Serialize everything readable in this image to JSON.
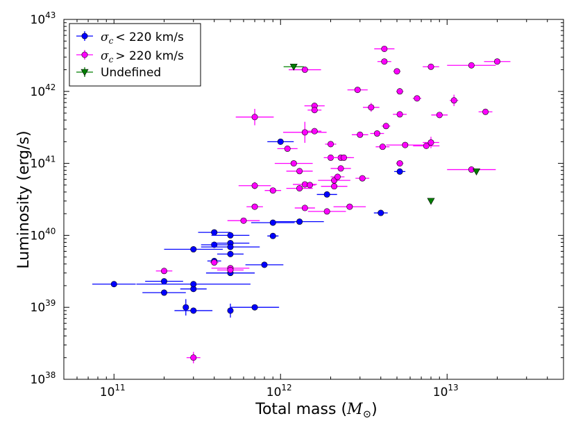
{
  "chart_data": {
    "type": "scatter",
    "xlabel": "Total mass (",
    "xlabel_unit": "M",
    "xlabel_unit_sub": "⊙",
    "xlabel_close": ")",
    "ylabel": "Luminosity (erg/s)",
    "x_scale": "log",
    "y_scale": "log",
    "xlim": [
      50000000000.0,
      50000000000000.0
    ],
    "ylim": [
      1e+38,
      1e+43
    ],
    "x_ticks": [
      {
        "value": 100000000000.0,
        "base": "10",
        "exp": "11"
      },
      {
        "value": 1000000000000.0,
        "base": "10",
        "exp": "12"
      },
      {
        "value": 10000000000000.0,
        "base": "10",
        "exp": "13"
      }
    ],
    "y_ticks": [
      {
        "value": 1e+38,
        "base": "10",
        "exp": "38"
      },
      {
        "value": 1e+39,
        "base": "10",
        "exp": "39"
      },
      {
        "value": 1e+40,
        "base": "10",
        "exp": "40"
      },
      {
        "value": 1e+41,
        "base": "10",
        "exp": "41"
      },
      {
        "value": 1e+42,
        "base": "10",
        "exp": "42"
      },
      {
        "value": 1e+43,
        "base": "10",
        "exp": "43"
      }
    ],
    "grid": false,
    "legend_position": "top-left",
    "series": [
      {
        "name_math": "σ",
        "name_sub": "c",
        "name_rest": "< 220 km/s",
        "color": "#0000ff",
        "edge": "#000000",
        "marker": "circle",
        "points": [
          [
            100000000000.0,
            2.1e+39,
            1.35,
            1.0
          ],
          [
            200000000000.0,
            2.3e+39,
            1.3,
            1.0
          ],
          [
            200000000000.0,
            1.6e+39,
            1.35,
            1.0
          ],
          [
            270000000000.0,
            1e+39,
            1.0,
            1.3
          ],
          [
            300000000000.0,
            9e+38,
            1.3,
            1.0
          ],
          [
            300000000000.0,
            1.8e+39,
            1.2,
            1.0
          ],
          [
            300000000000.0,
            2.1e+39,
            2.2,
            1.0
          ],
          [
            300000000000.0,
            6.4e+39,
            1.5,
            1.0
          ],
          [
            400000000000.0,
            1.1e+40,
            1.25,
            1.0
          ],
          [
            400000000000.0,
            7.4e+39,
            1.2,
            1.0
          ],
          [
            400000000000.0,
            4.4e+39,
            1.1,
            1.0
          ],
          [
            500000000000.0,
            1e+40,
            1.3,
            1.0
          ],
          [
            500000000000.0,
            7.8e+39,
            1.3,
            1.0
          ],
          [
            500000000000.0,
            6.9e+39,
            1.5,
            1.0
          ],
          [
            500000000000.0,
            5.5e+39,
            1.2,
            1.0
          ],
          [
            500000000000.0,
            3e+39,
            1.4,
            1.0
          ],
          [
            500000000000.0,
            9e+38,
            1.0,
            1.25
          ],
          [
            700000000000.0,
            1e+39,
            1.4,
            1.0
          ],
          [
            800000000000.0,
            3.9e+39,
            1.3,
            1.0
          ],
          [
            900000000000.0,
            1.5e+40,
            1.35,
            1.0
          ],
          [
            900000000000.0,
            9.8e+39,
            1.08,
            1.0
          ],
          [
            1000000000000.0,
            2e+41,
            1.2,
            1.0
          ],
          [
            1300000000000.0,
            1.55e+40,
            1.4,
            1.0
          ],
          [
            1900000000000.0,
            3.7e+40,
            1.15,
            1.0
          ],
          [
            4000000000000.0,
            2.05e+40,
            1.1,
            1.0
          ],
          [
            5200000000000.0,
            7.7e+40,
            1.08,
            1.0
          ]
        ]
      },
      {
        "name_math": "σ",
        "name_sub": "c",
        "name_rest": "> 220 km/s",
        "color": "#ff00ff",
        "edge": "#000000",
        "marker": "circle",
        "points": [
          [
            200000000000.0,
            3.2e+39,
            1.12,
            1.0
          ],
          [
            300000000000.0,
            2e+38,
            1.1,
            1.2
          ],
          [
            400000000000.0,
            4.2e+39,
            1.06,
            1.0
          ],
          [
            500000000000.0,
            3.5e+39,
            1.3,
            1.0
          ],
          [
            500000000000.0,
            3.3e+39,
            1.2,
            1.0
          ],
          [
            600000000000.0,
            1.6e+40,
            1.25,
            1.0
          ],
          [
            700000000000.0,
            4.9e+40,
            1.25,
            1.12
          ],
          [
            700000000000.0,
            4.4e+41,
            1.3,
            1.3
          ],
          [
            700000000000.0,
            2.5e+40,
            1.12,
            1.0
          ],
          [
            900000000000.0,
            4.2e+40,
            1.12,
            1.0
          ],
          [
            1100000000000.0,
            1.6e+41,
            1.15,
            1.0
          ],
          [
            1200000000000.0,
            1e+41,
            1.3,
            1.0
          ],
          [
            1300000000000.0,
            7.8e+40,
            1.2,
            1.0
          ],
          [
            1300000000000.0,
            4.5e+40,
            1.2,
            1.0
          ],
          [
            1400000000000.0,
            2e+42,
            1.25,
            1.0
          ],
          [
            1400000000000.0,
            2.7e+41,
            1.35,
            1.4
          ],
          [
            1400000000000.0,
            5.1e+40,
            1.18,
            1.0
          ],
          [
            1400000000000.0,
            2.4e+40,
            1.15,
            1.0
          ],
          [
            1500000000000.0,
            5e+40,
            1.08,
            1.0
          ],
          [
            1600000000000.0,
            6.3e+41,
            1.15,
            1.1
          ],
          [
            1600000000000.0,
            5.5e+41,
            1.1,
            1.0
          ],
          [
            1600000000000.0,
            2.8e+41,
            1.1,
            1.0
          ],
          [
            1900000000000.0,
            2.15e+40,
            1.3,
            1.0
          ],
          [
            2000000000000.0,
            1.85e+41,
            1.08,
            1.0
          ],
          [
            2000000000000.0,
            1.2e+41,
            1.1,
            1.0
          ],
          [
            2100000000000.0,
            5.8e+40,
            1.25,
            1.0
          ],
          [
            2100000000000.0,
            4.8e+40,
            1.2,
            1.0
          ],
          [
            2200000000000.0,
            6.5e+40,
            1.1,
            1.0
          ],
          [
            2300000000000.0,
            1.2e+41,
            1.2,
            1.0
          ],
          [
            2300000000000.0,
            8.5e+40,
            1.15,
            1.0
          ],
          [
            2400000000000.0,
            1.2e+41,
            1.1,
            1.0
          ],
          [
            2600000000000.0,
            2.5e+40,
            1.25,
            1.0
          ],
          [
            2900000000000.0,
            1.05e+42,
            1.15,
            1.0
          ],
          [
            3000000000000.0,
            2.5e+41,
            1.12,
            1.0
          ],
          [
            3100000000000.0,
            6.2e+40,
            1.1,
            1.0
          ],
          [
            3500000000000.0,
            6e+41,
            1.12,
            1.15
          ],
          [
            3800000000000.0,
            2.6e+41,
            1.1,
            1.0
          ],
          [
            4100000000000.0,
            1.7e+41,
            1.1,
            1.0
          ],
          [
            4200000000000.0,
            3.9e+42,
            1.15,
            1.0
          ],
          [
            4200000000000.0,
            2.6e+42,
            1.1,
            1.0
          ],
          [
            4300000000000.0,
            3.3e+41,
            1.06,
            1.0
          ],
          [
            5000000000000.0,
            1.9e+42,
            1.05,
            1.0
          ],
          [
            5200000000000.0,
            1e+42,
            1.05,
            1.0
          ],
          [
            5200000000000.0,
            4.8e+41,
            1.1,
            1.0
          ],
          [
            5200000000000.0,
            1e+41,
            1.05,
            1.0
          ],
          [
            5600000000000.0,
            1.8e+41,
            1.3,
            1.0
          ],
          [
            6600000000000.0,
            8e+41,
            1.06,
            1.1
          ],
          [
            7500000000000.0,
            1.75e+41,
            1.2,
            1.0
          ],
          [
            8000000000000.0,
            2.2e+42,
            1.12,
            1.0
          ],
          [
            8000000000000.0,
            1.95e+41,
            1.12,
            1.2
          ],
          [
            9000000000000.0,
            4.7e+41,
            1.12,
            1.0
          ],
          [
            11000000000000.0,
            7.5e+41,
            1.06,
            1.2
          ],
          [
            14000000000000.0,
            2.3e+42,
            1.4,
            1.0
          ],
          [
            14000000000000.0,
            8.2e+40,
            1.4,
            1.1
          ],
          [
            17000000000000.0,
            5.2e+41,
            1.1,
            1.0
          ],
          [
            20000000000000.0,
            2.6e+42,
            1.2,
            1.0
          ]
        ]
      },
      {
        "name": "Undefined",
        "color": "#007f00",
        "edge": "#000000",
        "marker": "triangle-down",
        "points": [
          [
            1200000000000.0,
            2.2e+42,
            1.15,
            1.0
          ],
          [
            8000000000000.0,
            3e+40,
            1.0,
            1.0
          ],
          [
            15000000000000.0,
            7.7e+40,
            1.0,
            1.0
          ]
        ]
      }
    ]
  }
}
